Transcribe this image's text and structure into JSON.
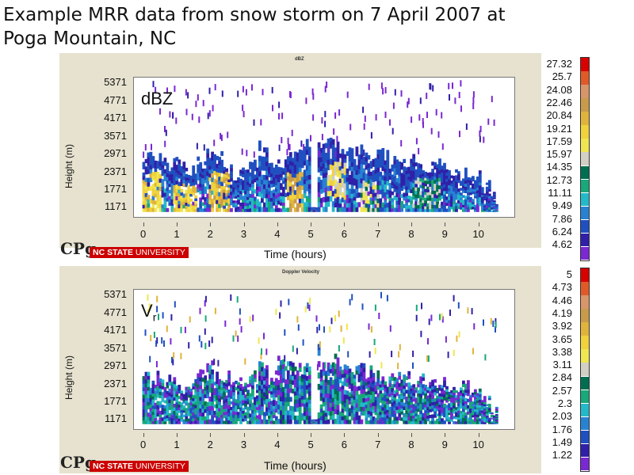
{
  "slide": {
    "title": "Example MRR data from snow storm on 7 April 2007 at Poga Mountain, NC"
  },
  "logo": {
    "mark": "CPg",
    "org_bold": "NC STATE",
    "org_rest": "UNIVERSITY"
  },
  "chart_data": [
    {
      "type": "heatmap",
      "title": "dBZ",
      "inner_label": "dBZ",
      "xlabel": "Time (hours)",
      "ylabel": "Height (m)",
      "x_ticks": [
        0,
        1,
        2,
        3,
        4,
        5,
        6,
        7,
        8,
        9,
        10
      ],
      "y_ticks": [
        1171,
        1771,
        2371,
        2971,
        3571,
        4171,
        4771,
        5371
      ],
      "xlim": [
        -0.3,
        11.05
      ],
      "ylim": [
        860,
        5570
      ],
      "colorbar_ticks": [
        27.32,
        25.7,
        24.08,
        22.46,
        20.84,
        19.21,
        17.59,
        15.97,
        14.35,
        12.73,
        11.11,
        9.49,
        7.86,
        6.24,
        4.62
      ],
      "colors": [
        "#d90000",
        "#e05a28",
        "#d9956a",
        "#c89b4a",
        "#e0b43c",
        "#f0d23c",
        "#f0e650",
        "#d2cfc4",
        "#006e50",
        "#18a87a",
        "#24b9c8",
        "#2882d2",
        "#2050c0",
        "#3020a8",
        "#7a28d2"
      ],
      "profile_top_m": [
        2971,
        3000,
        2700,
        2700,
        2600,
        2500,
        2700,
        3000,
        3000,
        2400,
        2300,
        2300,
        2700,
        3300,
        2700,
        2700,
        3000,
        3000,
        3300,
        3500,
        3300,
        3400,
        3200,
        3000,
        3100,
        3000,
        3000,
        2900,
        2700,
        2600,
        2800,
        2500,
        2500,
        2600,
        2400,
        2400,
        2400,
        2200,
        1900,
        1500
      ],
      "core_cells": [
        {
          "t": 0.15,
          "h": 1500,
          "w": 0.35,
          "d": 800,
          "level": 4
        },
        {
          "t": 1.2,
          "h": 1300,
          "w": 0.35,
          "d": 600,
          "level": 4
        },
        {
          "t": 2.2,
          "h": 1600,
          "w": 0.3,
          "d": 700,
          "level": 3
        },
        {
          "t": 4.45,
          "h": 1600,
          "w": 0.25,
          "d": 700,
          "level": 3
        },
        {
          "t": 5.7,
          "h": 2000,
          "w": 0.3,
          "d": 600,
          "level": 5
        },
        {
          "t": 6.7,
          "h": 1500,
          "w": 0.3,
          "d": 500,
          "level": 6
        },
        {
          "t": 8.4,
          "h": 1600,
          "w": 0.4,
          "d": 500,
          "level": 7
        }
      ]
    },
    {
      "type": "heatmap",
      "title": "Doppler Velocity",
      "inner_label": "V",
      "inner_label_sub": "r",
      "xlabel": "Time (hours)",
      "ylabel": "Height (m)",
      "x_ticks": [
        0,
        1,
        2,
        3,
        4,
        5,
        6,
        7,
        8,
        9,
        10
      ],
      "y_ticks": [
        1171,
        1771,
        2371,
        2971,
        3571,
        4171,
        4771,
        5371
      ],
      "xlim": [
        -0.3,
        11.05
      ],
      "ylim": [
        860,
        5570
      ],
      "colorbar_ticks": [
        5.0,
        4.73,
        4.46,
        4.19,
        3.92,
        3.65,
        3.38,
        3.11,
        2.84,
        2.57,
        2.3,
        2.03,
        1.76,
        1.49,
        1.22
      ],
      "colors": [
        "#d90000",
        "#e05a28",
        "#d9956a",
        "#c89b4a",
        "#e0b43c",
        "#f0d23c",
        "#f0e650",
        "#d2cfc4",
        "#006e50",
        "#18a87a",
        "#24b9c8",
        "#2882d2",
        "#2050c0",
        "#3020a8",
        "#7a28d2"
      ],
      "profile_top_m": [
        2800,
        2700,
        2500,
        2400,
        2300,
        2400,
        2800,
        3200,
        2700,
        2600,
        2400,
        2500,
        2600,
        3100,
        2600,
        3400,
        3000,
        2900,
        3000,
        3500,
        3000,
        3200,
        3000,
        2800,
        2900,
        2800,
        2700,
        2600,
        2600,
        2700,
        2500,
        2500,
        2400,
        2500,
        2300,
        2300,
        2300,
        2100,
        1800,
        1500
      ],
      "core_cells": []
    }
  ]
}
